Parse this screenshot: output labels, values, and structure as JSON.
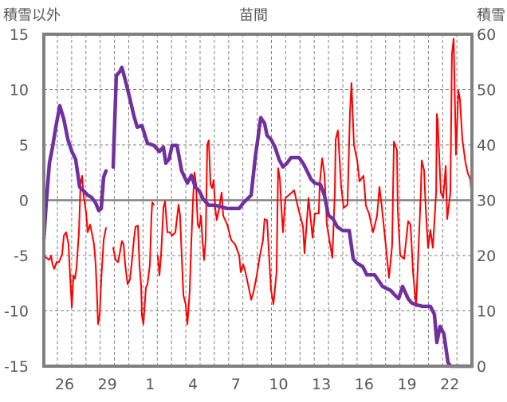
{
  "chart_data": {
    "type": "line",
    "title": "苗間",
    "ylabel_left": "積雪以外",
    "ylabel_right": "積雪",
    "x_range": [
      0,
      30
    ],
    "x_tick_labels": [
      "26",
      "29",
      "1",
      "4",
      "7",
      "10",
      "13",
      "16",
      "19",
      "22"
    ],
    "x_tick_positions": [
      1.45,
      4.45,
      7.45,
      10.45,
      13.45,
      16.45,
      19.45,
      22.45,
      25.45,
      28.45
    ],
    "day_gridlines_start": 0.95,
    "ylim_left": [
      -15,
      15
    ],
    "yticks_left": [
      15,
      10,
      5,
      0,
      -5,
      -10,
      -15
    ],
    "ylim_right": [
      0,
      60
    ],
    "yticks_right": [
      60,
      50,
      40,
      30,
      20,
      10,
      0
    ],
    "grid": true,
    "colors": {
      "temperature": "#ff0000",
      "snow": "#7030a0",
      "frame": "#808080",
      "grid": "#808080"
    },
    "series": [
      {
        "name": "積雪以外",
        "axis": "left",
        "color": "#ff0000",
        "points": [
          [
            0,
            -4.9
          ],
          [
            0.17,
            -5.2
          ],
          [
            0.39,
            -5.4
          ],
          [
            0.5,
            -5.0
          ],
          [
            0.61,
            -5.8
          ],
          [
            0.73,
            -6.2
          ],
          [
            0.89,
            -5.6
          ],
          [
            1.06,
            -5.6
          ],
          [
            1.28,
            -4.9
          ],
          [
            1.4,
            -3.2
          ],
          [
            1.56,
            -2.9
          ],
          [
            1.73,
            -4.0
          ],
          [
            1.84,
            -6.8
          ],
          [
            1.96,
            -9.7
          ],
          [
            2.07,
            -6.8
          ],
          [
            2.18,
            -7.1
          ],
          [
            2.29,
            -6.1
          ],
          [
            2.46,
            -2.9
          ],
          [
            2.57,
            1.4
          ],
          [
            2.68,
            2.2
          ],
          [
            2.79,
            0.4
          ],
          [
            2.96,
            -1.1
          ],
          [
            3.07,
            -2.9
          ],
          [
            3.24,
            -2.2
          ],
          [
            3.35,
            -2.9
          ],
          [
            3.52,
            -4.0
          ],
          [
            3.63,
            -5.8
          ],
          [
            3.74,
            -9.0
          ],
          [
            3.8,
            -11.2
          ],
          [
            3.91,
            -10.4
          ],
          [
            4.02,
            -7.2
          ],
          [
            4.19,
            -3.6
          ],
          [
            4.36,
            -2.5
          ],
          null,
          [
            4.86,
            -4.3
          ],
          [
            5.03,
            -5.4
          ],
          [
            5.2,
            -5.6
          ],
          [
            5.31,
            -4.9
          ],
          [
            5.47,
            -3.7
          ],
          [
            5.59,
            -4.0
          ],
          [
            5.7,
            -5.8
          ],
          [
            5.87,
            -7.6
          ],
          [
            6.03,
            -7.2
          ],
          [
            6.15,
            -5.8
          ],
          [
            6.31,
            -3.6
          ],
          [
            6.42,
            -2.4
          ],
          [
            6.59,
            -2.3
          ],
          [
            6.7,
            -5.8
          ],
          [
            6.82,
            -7.8
          ],
          [
            6.87,
            -10.4
          ],
          [
            6.98,
            -11.2
          ],
          [
            7.15,
            -7.9
          ],
          [
            7.26,
            -7.6
          ],
          [
            7.43,
            -5.8
          ],
          [
            7.54,
            -1.4
          ],
          [
            7.6,
            -0.2
          ],
          [
            7.71,
            -0.4
          ],
          null,
          [
            7.99,
            -5.0
          ],
          [
            8.1,
            -6.8
          ],
          [
            8.21,
            -5.0
          ],
          [
            8.38,
            -0.7
          ],
          [
            8.49,
            -0.1
          ],
          [
            8.66,
            -2.9
          ],
          [
            8.83,
            -2.9
          ],
          [
            8.99,
            -3.2
          ],
          [
            9.22,
            -2.9
          ],
          [
            9.44,
            -0.4
          ],
          [
            9.55,
            -1.4
          ],
          [
            9.66,
            -5.0
          ],
          [
            9.78,
            -8.6
          ],
          [
            9.94,
            -9.4
          ],
          [
            10.06,
            -11.2
          ],
          [
            10.22,
            -8.3
          ],
          [
            10.34,
            -3.6
          ],
          [
            10.45,
            0
          ],
          [
            10.56,
            2.5
          ],
          [
            10.67,
            1.4
          ],
          [
            10.78,
            -2.2
          ],
          [
            10.89,
            -2.5
          ],
          [
            11.01,
            -1.4
          ],
          [
            11.12,
            -3.6
          ],
          [
            11.23,
            -5.4
          ],
          [
            11.34,
            -3.6
          ],
          [
            11.45,
            5.0
          ],
          [
            11.56,
            5.4
          ],
          [
            11.68,
            1.4
          ],
          [
            11.79,
            1.1
          ],
          [
            11.9,
            1.8
          ],
          [
            12.01,
            -0.7
          ],
          [
            12.12,
            -1.8
          ],
          [
            12.29,
            -0.7
          ],
          [
            12.46,
            0.7
          ],
          [
            12.57,
            -1.4
          ],
          [
            12.85,
            -2.2
          ],
          [
            13.13,
            -3.6
          ],
          [
            13.41,
            -4.0
          ],
          [
            13.69,
            -5.0
          ],
          [
            13.8,
            -6.5
          ],
          [
            13.97,
            -5.8
          ],
          [
            14.13,
            -6.5
          ],
          [
            14.36,
            -7.9
          ],
          [
            14.53,
            -9.0
          ],
          [
            14.69,
            -8.3
          ],
          [
            14.92,
            -6.8
          ],
          [
            15.14,
            -5.0
          ],
          [
            15.36,
            -3.6
          ],
          [
            15.47,
            -1.7
          ],
          [
            15.64,
            -1.8
          ],
          [
            15.92,
            -8.1
          ],
          [
            16.09,
            -9.4
          ],
          [
            16.31,
            -6.5
          ],
          [
            16.42,
            2.9
          ],
          [
            16.54,
            1.9
          ],
          [
            16.65,
            -0.7
          ],
          [
            16.76,
            -2.9
          ],
          [
            16.93,
            0.2
          ],
          [
            17.21,
            0.5
          ],
          [
            17.54,
            0.9
          ],
          [
            17.82,
            -0.7
          ],
          [
            18.16,
            -2.4
          ],
          [
            18.27,
            -4.8
          ],
          [
            18.55,
            0.2
          ],
          [
            18.83,
            -3.4
          ],
          [
            18.99,
            -1.2
          ],
          [
            19.27,
            -1.2
          ],
          [
            19.33,
            1.4
          ],
          [
            19.5,
            3.8
          ],
          [
            19.66,
            2.4
          ],
          [
            19.78,
            -0.7
          ],
          [
            19.83,
            -2.2
          ],
          [
            20.22,
            -5.2
          ],
          [
            20.39,
            0.7
          ],
          [
            20.45,
            5.5
          ],
          [
            20.61,
            6.3
          ],
          [
            20.84,
            1.2
          ],
          [
            21.01,
            -0.7
          ],
          [
            21.28,
            -0.4
          ],
          [
            21.45,
            7.9
          ],
          [
            21.56,
            10.6
          ],
          [
            21.73,
            5.0
          ],
          [
            21.96,
            3.6
          ],
          [
            22.12,
            1.7
          ],
          [
            22.4,
            2.2
          ],
          [
            22.57,
            -0.5
          ],
          [
            22.79,
            -1.2
          ],
          [
            23.07,
            -2.9
          ],
          [
            23.35,
            -1.4
          ],
          [
            23.52,
            1.2
          ],
          [
            23.69,
            -0.7
          ],
          [
            23.91,
            -3.4
          ],
          [
            24.19,
            -7.0
          ],
          [
            24.41,
            -4.1
          ],
          [
            24.53,
            5.3
          ],
          [
            24.75,
            4.5
          ],
          [
            24.8,
            -0.7
          ],
          [
            24.97,
            -5.0
          ],
          [
            25.25,
            -5.3
          ],
          [
            25.53,
            -1.9
          ],
          [
            25.7,
            -2.2
          ],
          [
            25.87,
            -6.5
          ],
          [
            26.09,
            -9.6
          ],
          [
            26.42,
            0.7
          ],
          [
            26.48,
            3.6
          ],
          [
            26.65,
            2.7
          ],
          [
            26.76,
            -0.7
          ],
          [
            26.93,
            -4.3
          ],
          [
            27.09,
            -2.7
          ],
          [
            27.26,
            -4.3
          ],
          [
            27.49,
            0.7
          ],
          [
            27.54,
            7.8
          ],
          [
            27.6,
            7.2
          ],
          [
            27.82,
            0.7
          ],
          [
            27.99,
            0.2
          ],
          [
            28.16,
            3.1
          ],
          [
            28.27,
            -1.7
          ],
          [
            28.49,
            0.7
          ],
          [
            28.6,
            13.2
          ],
          [
            28.72,
            14.6
          ],
          [
            28.88,
            4.1
          ],
          [
            29.05,
            9.9
          ],
          [
            29.16,
            9.1
          ],
          [
            29.33,
            5.5
          ],
          [
            29.55,
            3.4
          ],
          [
            29.72,
            2.4
          ],
          [
            29.89,
            1.9
          ],
          [
            30,
            0
          ]
        ]
      },
      {
        "name": "積雪",
        "axis": "right",
        "color": "#7030a0",
        "points": [
          [
            0,
            23.0
          ],
          [
            0.17,
            29.5
          ],
          [
            0.39,
            36.7
          ],
          [
            0.61,
            39.6
          ],
          [
            0.84,
            43.2
          ],
          [
            1.12,
            47.1
          ],
          [
            1.4,
            44.6
          ],
          [
            1.68,
            41.0
          ],
          [
            1.96,
            38.8
          ],
          [
            2.23,
            37.4
          ],
          [
            2.51,
            32.4
          ],
          [
            2.79,
            31.7
          ],
          [
            3.07,
            30.9
          ],
          [
            3.35,
            30.5
          ],
          [
            3.63,
            29.5
          ],
          [
            3.85,
            28.1
          ],
          [
            4.02,
            28.5
          ],
          [
            4.19,
            34.2
          ],
          [
            4.36,
            35.3
          ],
          null,
          [
            4.86,
            36.0
          ],
          [
            5.08,
            52.5
          ],
          [
            5.31,
            53.2
          ],
          [
            5.47,
            54.0
          ],
          [
            5.7,
            51.8
          ],
          [
            5.98,
            48.9
          ],
          [
            6.31,
            45.3
          ],
          [
            6.54,
            43.2
          ],
          [
            6.87,
            43.5
          ],
          [
            7.09,
            41.7
          ],
          [
            7.26,
            40.3
          ],
          [
            7.71,
            39.9
          ],
          [
            8.1,
            38.8
          ],
          [
            8.38,
            39.6
          ],
          [
            8.55,
            36.7
          ],
          [
            8.77,
            37.4
          ],
          [
            8.99,
            39.9
          ],
          [
            9.33,
            39.9
          ],
          [
            9.66,
            35.3
          ],
          [
            10.06,
            33.1
          ],
          [
            10.34,
            34.5
          ],
          [
            10.61,
            32.4
          ],
          [
            10.89,
            31.7
          ],
          [
            11.17,
            30.2
          ],
          [
            11.56,
            29.1
          ],
          [
            12.01,
            29.1
          ],
          [
            12.85,
            28.5
          ],
          [
            13.69,
            28.5
          ],
          [
            13.97,
            29.5
          ],
          [
            14.25,
            30.2
          ],
          [
            14.53,
            30.9
          ],
          [
            14.8,
            37.4
          ],
          [
            15.2,
            44.9
          ],
          [
            15.47,
            43.9
          ],
          [
            15.64,
            41.7
          ],
          [
            15.92,
            41.0
          ],
          [
            16.2,
            39.6
          ],
          [
            16.48,
            37.4
          ],
          [
            16.76,
            36.0
          ],
          [
            17.04,
            36.7
          ],
          [
            17.32,
            37.7
          ],
          [
            17.88,
            37.7
          ],
          [
            18.16,
            36.7
          ],
          [
            18.44,
            35.3
          ],
          [
            18.72,
            33.8
          ],
          [
            18.99,
            33.1
          ],
          [
            19.39,
            32.8
          ],
          [
            19.66,
            30.9
          ],
          [
            19.94,
            27.3
          ],
          [
            20.28,
            26.6
          ],
          [
            20.56,
            25.2
          ],
          [
            20.95,
            24.5
          ],
          [
            21.4,
            24.5
          ],
          [
            21.68,
            19.4
          ],
          [
            21.9,
            18.7
          ],
          [
            22.35,
            18.0
          ],
          [
            22.63,
            16.5
          ],
          [
            23.18,
            16.5
          ],
          [
            23.74,
            14.4
          ],
          [
            24.3,
            13.7
          ],
          [
            24.58,
            12.9
          ],
          [
            24.86,
            12.2
          ],
          [
            25.14,
            14.4
          ],
          [
            25.53,
            12.2
          ],
          [
            25.75,
            11.5
          ],
          [
            25.98,
            11.2
          ],
          [
            26.54,
            10.8
          ],
          [
            27.09,
            10.8
          ],
          [
            27.37,
            9.4
          ],
          [
            27.54,
            4.3
          ],
          [
            27.77,
            7.2
          ],
          [
            28.04,
            5.8
          ],
          [
            28.32,
            0.7
          ],
          [
            28.49,
            0
          ],
          [
            30,
            0
          ]
        ]
      }
    ]
  }
}
